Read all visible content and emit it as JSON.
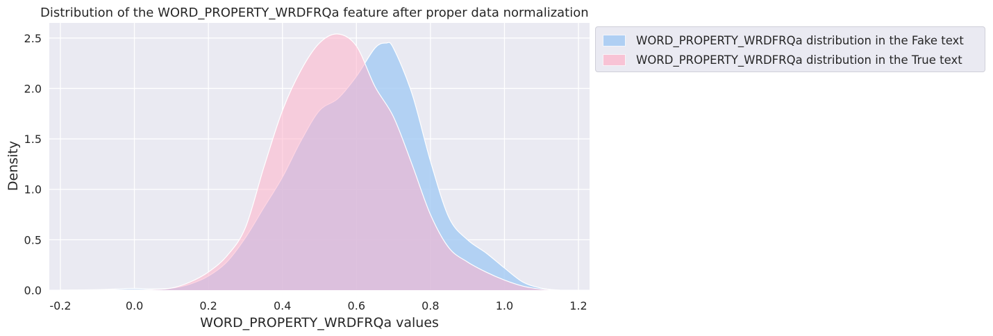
{
  "chart_data": {
    "type": "area",
    "title": "Distribution of the WORD_PROPERTY_WRDFRQa feature after proper data normalization",
    "xlabel": "WORD_PROPERTY_WRDFRQa values",
    "ylabel": "Density",
    "xlim": [
      -0.23,
      1.23
    ],
    "ylim": [
      0,
      2.65
    ],
    "xticks": [
      "-0.2",
      "0.0",
      "0.2",
      "0.4",
      "0.6",
      "0.8",
      "1.0",
      "1.2"
    ],
    "yticks": [
      "0.0",
      "0.5",
      "1.0",
      "1.5",
      "2.0",
      "2.5"
    ],
    "grid": true,
    "legend_position": "outside-top-right",
    "series": [
      {
        "name": "WORD_PROPERTY_WRDFRQa distribution in the Fake text",
        "color": "#a1c9f4",
        "x": [
          -0.2,
          -0.1,
          -0.05,
          0.0,
          0.05,
          0.1,
          0.15,
          0.2,
          0.25,
          0.3,
          0.35,
          0.4,
          0.45,
          0.5,
          0.55,
          0.6,
          0.65,
          0.68,
          0.7,
          0.75,
          0.8,
          0.85,
          0.9,
          0.95,
          1.0,
          1.05,
          1.1,
          1.15
        ],
        "y": [
          0.0,
          0.005,
          0.012,
          0.018,
          0.012,
          0.02,
          0.06,
          0.14,
          0.28,
          0.52,
          0.82,
          1.12,
          1.48,
          1.78,
          1.9,
          2.12,
          2.4,
          2.45,
          2.4,
          1.95,
          1.28,
          0.72,
          0.5,
          0.37,
          0.22,
          0.08,
          0.02,
          0.0
        ]
      },
      {
        "name": "WORD_PROPERTY_WRDFRQa distribution in the True text",
        "color": "#ffb3ca",
        "x": [
          -0.2,
          -0.1,
          -0.05,
          0.0,
          0.05,
          0.1,
          0.15,
          0.2,
          0.25,
          0.3,
          0.35,
          0.4,
          0.45,
          0.5,
          0.55,
          0.6,
          0.65,
          0.7,
          0.75,
          0.8,
          0.85,
          0.9,
          0.95,
          1.0,
          1.05,
          1.1,
          1.15
        ],
        "y": [
          0.0,
          0.002,
          0.004,
          0.005,
          0.006,
          0.02,
          0.08,
          0.18,
          0.34,
          0.62,
          1.22,
          1.78,
          2.18,
          2.45,
          2.54,
          2.42,
          2.02,
          1.72,
          1.25,
          0.75,
          0.42,
          0.28,
          0.18,
          0.1,
          0.04,
          0.01,
          0.0
        ]
      }
    ]
  }
}
